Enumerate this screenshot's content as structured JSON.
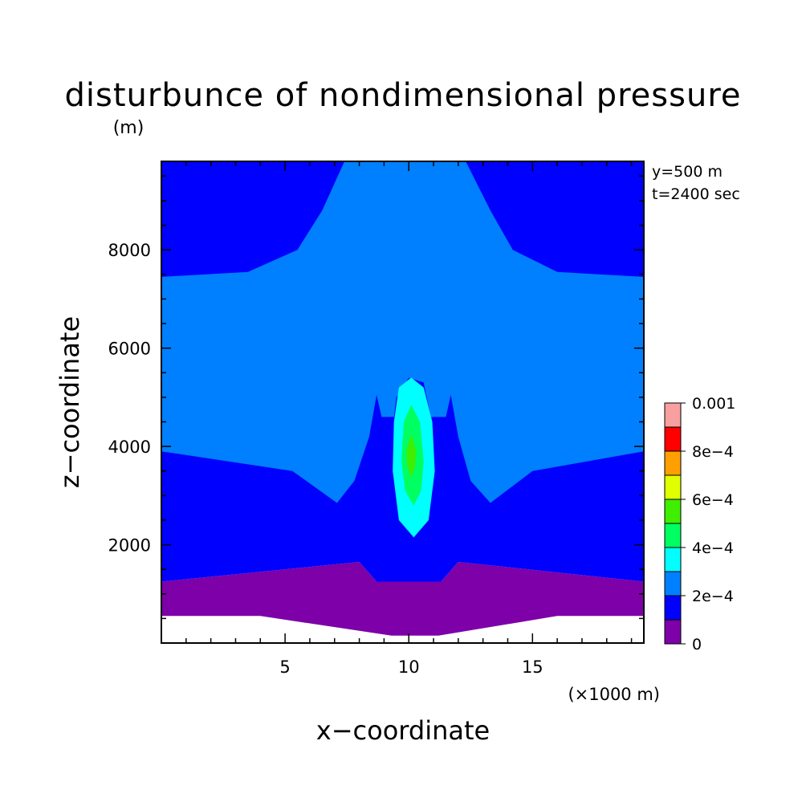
{
  "chart_data": {
    "type": "contour",
    "title": "disturbunce of nondimensional pressure",
    "unit_label": "(m)",
    "xlabel": "x−coordinate",
    "ylabel": "z−coordinate",
    "x_unit_label": "(×1000 m)",
    "xlim": [
      0,
      19.5
    ],
    "ylim": [
      0,
      9800
    ],
    "x_ticks": [
      5,
      10,
      15
    ],
    "x_tick_labels": [
      "5",
      "10",
      "15"
    ],
    "y_ticks": [
      2000,
      4000,
      6000,
      8000
    ],
    "y_tick_labels": [
      "2000",
      "4000",
      "6000",
      "8000"
    ],
    "annotations": [
      "y=500 m",
      "t=2400 sec"
    ],
    "contour_levels": [
      0,
      0.0001,
      0.0002,
      0.0003,
      0.0004,
      0.0005,
      0.0006,
      0.0007,
      0.0008,
      0.0009,
      0.001
    ],
    "colorbar_labels": [
      {
        "level": 0,
        "label": "0"
      },
      {
        "level": 0.0002,
        "label": "2e−4"
      },
      {
        "level": 0.0004,
        "label": "4e−4"
      },
      {
        "level": 0.0006,
        "label": "6e−4"
      },
      {
        "level": 0.0008,
        "label": "8e−4"
      },
      {
        "level": 0.001,
        "label": "0.001"
      }
    ],
    "colorbar_colors": [
      "#7d00a8",
      "#0000ff",
      "#0080ff",
      "#00ffff",
      "#00ff60",
      "#40ee00",
      "#e0ff00",
      "#ffa000",
      "#ff0000",
      "#f8a0a0"
    ],
    "regions": [
      {
        "level_range": [
          0,
          0.0001
        ],
        "color": "#7d00a8",
        "points": [
          [
            0,
            1250
          ],
          [
            8,
            1650
          ],
          [
            8.7,
            1250
          ],
          [
            11.3,
            1250
          ],
          [
            12,
            1650
          ],
          [
            19.5,
            1250
          ],
          [
            19.5,
            550
          ],
          [
            16,
            550
          ],
          [
            11.2,
            150
          ],
          [
            9.3,
            150
          ],
          [
            4,
            550
          ],
          [
            0,
            550
          ]
        ]
      },
      {
        "level_range": [
          0.0001,
          0.0002
        ],
        "color": "#0000ff",
        "points": [
          [
            0,
            9800
          ],
          [
            19.5,
            9800
          ],
          [
            19.5,
            1250
          ],
          [
            12,
            1650
          ],
          [
            11.3,
            1250
          ],
          [
            8.7,
            1250
          ],
          [
            8,
            1650
          ],
          [
            0,
            1250
          ]
        ]
      },
      {
        "level_range": [
          0.0002,
          0.0003
        ],
        "color": "#0080ff",
        "points": [
          [
            7.4,
            9800
          ],
          [
            12.3,
            9800
          ],
          [
            13.3,
            8800
          ],
          [
            14.2,
            8000
          ],
          [
            16,
            7550
          ],
          [
            19.5,
            7450
          ],
          [
            19.5,
            3900
          ],
          [
            15,
            3500
          ],
          [
            13.3,
            2850
          ],
          [
            12.5,
            3300
          ],
          [
            12,
            4200
          ],
          [
            11.7,
            5050
          ],
          [
            11.5,
            4600
          ],
          [
            10.9,
            4600
          ],
          [
            10.6,
            5300
          ],
          [
            10,
            5400
          ],
          [
            9.5,
            5000
          ],
          [
            9.4,
            4600
          ],
          [
            8.9,
            4600
          ],
          [
            8.7,
            5050
          ],
          [
            8.4,
            4200
          ],
          [
            7.8,
            3300
          ],
          [
            7.1,
            2850
          ],
          [
            5.3,
            3500
          ],
          [
            0,
            3900
          ],
          [
            0,
            7450
          ],
          [
            3.5,
            7550
          ],
          [
            5.5,
            8000
          ],
          [
            6.5,
            8800
          ]
        ]
      },
      {
        "level_range": [
          0.0003,
          0.0004
        ],
        "color": "#00ffff",
        "points": [
          [
            10.1,
            5400
          ],
          [
            10.6,
            5200
          ],
          [
            10.95,
            4500
          ],
          [
            11.05,
            3500
          ],
          [
            10.8,
            2500
          ],
          [
            10.2,
            2150
          ],
          [
            9.6,
            2500
          ],
          [
            9.35,
            3500
          ],
          [
            9.4,
            4500
          ],
          [
            9.6,
            5200
          ]
        ]
      },
      {
        "level_range": [
          0.0004,
          0.0005
        ],
        "color": "#00ff60",
        "points": [
          [
            10.1,
            4850
          ],
          [
            10.45,
            4500
          ],
          [
            10.6,
            3700
          ],
          [
            10.5,
            3100
          ],
          [
            10.2,
            2800
          ],
          [
            9.85,
            3100
          ],
          [
            9.7,
            3700
          ],
          [
            9.8,
            4500
          ]
        ]
      },
      {
        "level_range": [
          0.0005,
          0.0006
        ],
        "color": "#40ee00",
        "points": [
          [
            10.1,
            4250
          ],
          [
            10.3,
            3900
          ],
          [
            10.25,
            3600
          ],
          [
            10.1,
            3350
          ],
          [
            9.95,
            3600
          ],
          [
            9.9,
            3900
          ]
        ]
      }
    ]
  }
}
